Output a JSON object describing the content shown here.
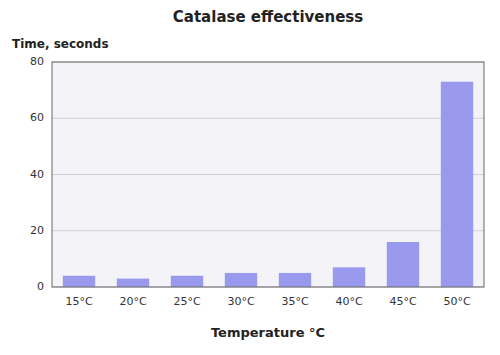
{
  "chart_data": {
    "type": "bar",
    "title": "Catalase effectiveness",
    "xlabel": "Temperature °C",
    "ylabel": "Time, seconds",
    "categories": [
      "15°C",
      "20°C",
      "25°C",
      "30°C",
      "35°C",
      "40°C",
      "45°C",
      "50°C"
    ],
    "values": [
      4,
      3,
      4,
      5,
      5,
      7,
      16,
      73
    ],
    "color": "#9999ee",
    "ylim": [
      0,
      80
    ],
    "yticks": [
      0,
      20,
      40,
      60,
      80
    ],
    "grid": true
  }
}
